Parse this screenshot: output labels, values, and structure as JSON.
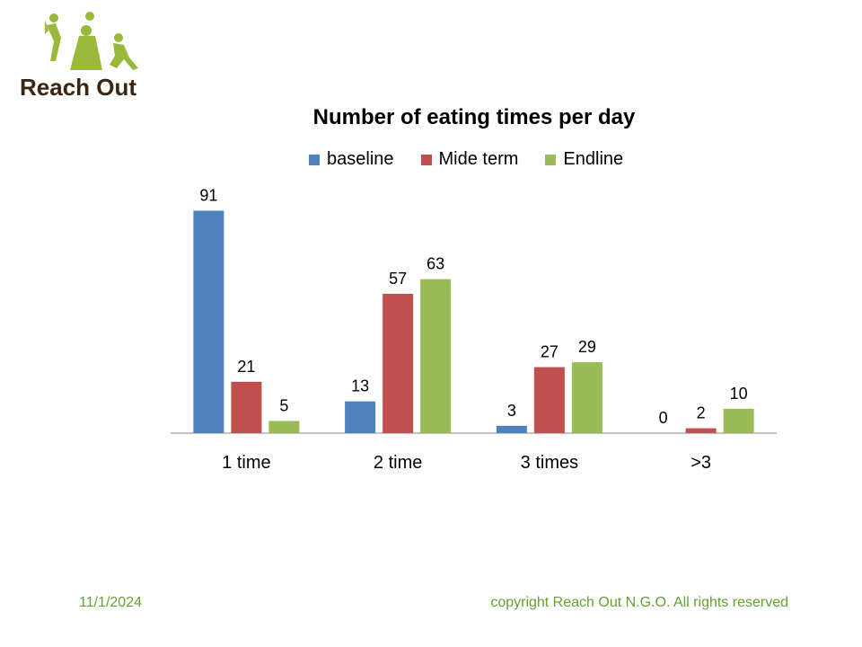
{
  "logo": {
    "text": "Reach Out"
  },
  "footer": {
    "date": "11/1/2024",
    "copyright": "copyright Reach Out N.G.O. All rights reserved"
  },
  "colors": {
    "baseline": "#4f81bd",
    "mide_term": "#c0504d",
    "endline": "#9bbb59",
    "logo_green": "#9ab93a",
    "logo_text": "#3b2614",
    "footer_text": "#66a033"
  },
  "chart_data": {
    "type": "bar",
    "title": "Number of eating times per day",
    "xlabel": "",
    "ylabel": "",
    "ylim": [
      0,
      100
    ],
    "grid": false,
    "legend_position": "top",
    "categories": [
      "1 time",
      "2 time",
      "3 times",
      ">3"
    ],
    "series": [
      {
        "name": "baseline",
        "values": [
          91,
          13,
          3,
          0
        ]
      },
      {
        "name": "Mide term",
        "values": [
          21,
          57,
          27,
          2
        ]
      },
      {
        "name": "Endline",
        "values": [
          5,
          63,
          29,
          10
        ]
      }
    ]
  }
}
